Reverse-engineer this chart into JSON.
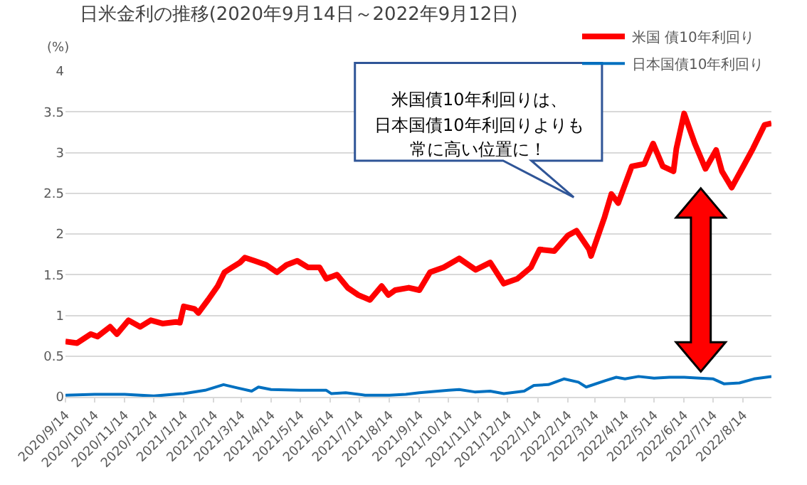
{
  "chart_data": {
    "type": "line",
    "title": "日米金利の推移(2020年9月14日～2022年9月12日)",
    "ylabel": "(%)",
    "annotations": [
      "米国債10年利回りは、",
      "日本国債10年利回りよりも",
      "常に高い位置に！"
    ],
    "xlim": [
      "2020-09-14",
      "2022-09-12"
    ],
    "xticks": [
      {
        "value": "2020-09-14",
        "label": "2020/9/14"
      },
      {
        "value": "2020-10-14",
        "label": "2020/10/14"
      },
      {
        "value": "2020-11-14",
        "label": "2020/11/14"
      },
      {
        "value": "2020-12-14",
        "label": "2020/12/14"
      },
      {
        "value": "2021-01-14",
        "label": "2021/1/14"
      },
      {
        "value": "2021-02-14",
        "label": "2021/2/14"
      },
      {
        "value": "2021-03-14",
        "label": "2021/3/14"
      },
      {
        "value": "2021-04-14",
        "label": "2021/4/14"
      },
      {
        "value": "2021-05-14",
        "label": "2021/5/14"
      },
      {
        "value": "2021-06-14",
        "label": "2021/6/14"
      },
      {
        "value": "2021-07-14",
        "label": "2021/7/14"
      },
      {
        "value": "2021-08-14",
        "label": "2021/8/14"
      },
      {
        "value": "2021-09-14",
        "label": "2021/9/14"
      },
      {
        "value": "2021-10-14",
        "label": "2021/10/14"
      },
      {
        "value": "2021-11-14",
        "label": "2021/11/14"
      },
      {
        "value": "2021-12-14",
        "label": "2021/12/14"
      },
      {
        "value": "2022-01-14",
        "label": "2022/1/14"
      },
      {
        "value": "2022-02-14",
        "label": "2022/2/14"
      },
      {
        "value": "2022-03-14",
        "label": "2022/3/14"
      },
      {
        "value": "2022-04-14",
        "label": "2022/4/14"
      },
      {
        "value": "2022-05-14",
        "label": "2022/5/14"
      },
      {
        "value": "2022-06-14",
        "label": "2022/6/14"
      },
      {
        "value": "2022-07-14",
        "label": "2022/7/14"
      },
      {
        "value": "2022-08-14",
        "label": "2022/8/14"
      }
    ],
    "ylim": [
      0,
      4
    ],
    "yticks": [
      0,
      0.5,
      1,
      1.5,
      2,
      2.5,
      3,
      3.5,
      4
    ],
    "grid": "y",
    "legend": "top right",
    "series": [
      {
        "name": "米国 債10年利回り",
        "color": "#ff0000",
        "x": [
          "2020-09-14",
          "2020-09-26",
          "2020-10-10",
          "2020-10-17",
          "2020-10-30",
          "2020-11-06",
          "2020-11-18",
          "2020-11-30",
          "2020-12-11",
          "2020-12-23",
          "2021-01-06",
          "2021-01-10",
          "2021-01-14",
          "2021-01-25",
          "2021-01-29",
          "2021-02-08",
          "2021-02-18",
          "2021-02-25",
          "2021-03-05",
          "2021-03-13",
          "2021-03-18",
          "2021-03-28",
          "2021-04-09",
          "2021-04-20",
          "2021-04-30",
          "2021-05-11",
          "2021-05-22",
          "2021-06-03",
          "2021-06-10",
          "2021-06-21",
          "2021-07-02",
          "2021-07-13",
          "2021-07-25",
          "2021-08-06",
          "2021-08-13",
          "2021-08-20",
          "2021-09-03",
          "2021-09-14",
          "2021-09-25",
          "2021-10-09",
          "2021-10-25",
          "2021-11-11",
          "2021-11-26",
          "2021-12-10",
          "2021-12-24",
          "2022-01-07",
          "2022-01-16",
          "2022-01-31",
          "2022-02-14",
          "2022-02-23",
          "2022-03-08",
          "2022-03-10",
          "2022-03-24",
          "2022-03-31",
          "2022-04-07",
          "2022-04-21",
          "2022-05-04",
          "2022-05-13",
          "2022-05-23",
          "2022-06-03",
          "2022-06-06",
          "2022-06-14",
          "2022-06-25",
          "2022-07-06",
          "2022-07-17",
          "2022-07-23",
          "2022-08-02",
          "2022-08-14",
          "2022-08-24",
          "2022-09-05",
          "2022-09-12"
        ],
        "values": [
          0.68,
          0.66,
          0.77,
          0.74,
          0.86,
          0.77,
          0.94,
          0.86,
          0.94,
          0.9,
          0.92,
          0.91,
          1.11,
          1.08,
          1.03,
          1.19,
          1.36,
          1.53,
          1.59,
          1.65,
          1.71,
          1.67,
          1.62,
          1.53,
          1.62,
          1.67,
          1.59,
          1.59,
          1.45,
          1.5,
          1.34,
          1.25,
          1.19,
          1.36,
          1.25,
          1.31,
          1.34,
          1.31,
          1.53,
          1.59,
          1.7,
          1.56,
          1.65,
          1.39,
          1.45,
          1.59,
          1.81,
          1.79,
          1.98,
          2.04,
          1.81,
          1.73,
          2.21,
          2.49,
          2.38,
          2.83,
          2.86,
          3.11,
          2.83,
          2.77,
          3.05,
          3.48,
          3.11,
          2.8,
          3.03,
          2.77,
          2.57,
          2.83,
          3.05,
          3.34,
          3.36
        ]
      },
      {
        "name": "日本国債10年利回り",
        "color": "#0070c0",
        "x": [
          "2020-09-14",
          "2020-10-14",
          "2020-11-14",
          "2020-12-14",
          "2021-01-14",
          "2021-02-05",
          "2021-02-24",
          "2021-03-10",
          "2021-03-25",
          "2021-04-01",
          "2021-04-14",
          "2021-05-14",
          "2021-06-10",
          "2021-06-15",
          "2021-06-30",
          "2021-07-20",
          "2021-08-14",
          "2021-08-31",
          "2021-09-14",
          "2021-10-14",
          "2021-10-25",
          "2021-11-10",
          "2021-11-26",
          "2021-12-10",
          "2021-12-31",
          "2022-01-10",
          "2022-01-25",
          "2022-02-10",
          "2022-02-25",
          "2022-03-05",
          "2022-03-25",
          "2022-04-05",
          "2022-04-14",
          "2022-04-28",
          "2022-05-14",
          "2022-05-30",
          "2022-06-14",
          "2022-06-30",
          "2022-07-14",
          "2022-07-25",
          "2022-08-10",
          "2022-08-25",
          "2022-09-12"
        ],
        "values": [
          0.02,
          0.03,
          0.03,
          0.01,
          0.04,
          0.08,
          0.15,
          0.11,
          0.07,
          0.12,
          0.09,
          0.08,
          0.08,
          0.04,
          0.05,
          0.02,
          0.02,
          0.03,
          0.05,
          0.08,
          0.09,
          0.06,
          0.07,
          0.04,
          0.07,
          0.14,
          0.15,
          0.22,
          0.18,
          0.12,
          0.2,
          0.24,
          0.22,
          0.25,
          0.23,
          0.24,
          0.24,
          0.23,
          0.22,
          0.16,
          0.17,
          0.22,
          0.25
        ]
      }
    ]
  }
}
